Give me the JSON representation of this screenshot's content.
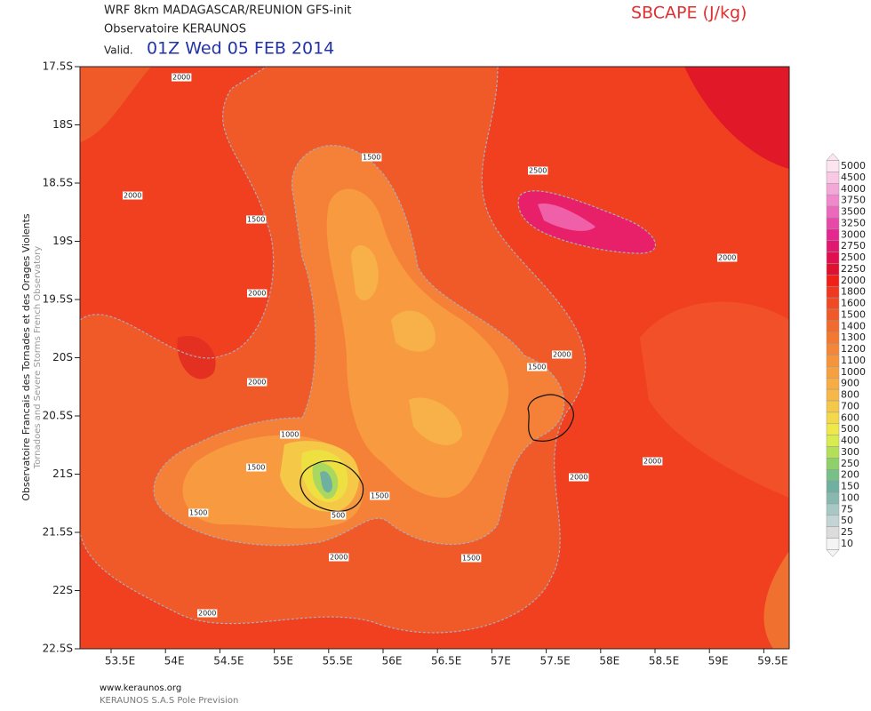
{
  "header": {
    "title": "WRF 8km MADAGASCAR/REUNION   GFS-init",
    "source": "Observatoire KERAUNOS",
    "valid_label": "Valid.",
    "valid_time": "01Z Wed 05 FEB 2014",
    "variable": "SBCAPE (J/kg)"
  },
  "side": {
    "french": "Observatoire Francais des Tornades et des Orages Violents",
    "english": "Tornadoes and Severe Storms French Observatory"
  },
  "lat_labels": [
    "17.5S",
    "18S",
    "18.5S",
    "19S",
    "19.5S",
    "20S",
    "20.5S",
    "21S",
    "21.5S",
    "22S",
    "22.5S"
  ],
  "lon_labels": [
    "53.5E",
    "54E",
    "54.5E",
    "55E",
    "55.5E",
    "56E",
    "56.5E",
    "57E",
    "57.5E",
    "58E",
    "58.5E",
    "59E",
    "59.5E"
  ],
  "contour_labels": [
    "2000",
    "1500",
    "2500",
    "2000",
    "1500",
    "2000",
    "2000",
    "2000",
    "1500",
    "2000",
    "1000",
    "2000",
    "1500",
    "2000",
    "1500",
    "1500",
    "500",
    "2000",
    "1500",
    "2000"
  ],
  "colorbar": [
    {
      "label": "5000",
      "color": "#fce4f0"
    },
    {
      "label": "4500",
      "color": "#f8c8e4"
    },
    {
      "label": "4000",
      "color": "#f4a8d8"
    },
    {
      "label": "3750",
      "color": "#f088cc"
    },
    {
      "label": "3500",
      "color": "#ec68bc"
    },
    {
      "label": "3250",
      "color": "#e848a8"
    },
    {
      "label": "3000",
      "color": "#e42890"
    },
    {
      "label": "2750",
      "color": "#e01870"
    },
    {
      "label": "2500",
      "color": "#e01050"
    },
    {
      "label": "2250",
      "color": "#e01030"
    },
    {
      "label": "2000",
      "color": "#f02018"
    },
    {
      "label": "1800",
      "color": "#f03820"
    },
    {
      "label": "1600",
      "color": "#f04a24"
    },
    {
      "label": "1500",
      "color": "#f05a28"
    },
    {
      "label": "1400",
      "color": "#f26a2c"
    },
    {
      "label": "1300",
      "color": "#f37830"
    },
    {
      "label": "1200",
      "color": "#f58638"
    },
    {
      "label": "1100",
      "color": "#f6943c"
    },
    {
      "label": "1000",
      "color": "#f7a040"
    },
    {
      "label": "900",
      "color": "#f8ac44"
    },
    {
      "label": "800",
      "color": "#f8b848"
    },
    {
      "label": "700",
      "color": "#f6c84a"
    },
    {
      "label": "600",
      "color": "#f2d84a"
    },
    {
      "label": "500",
      "color": "#eee848"
    },
    {
      "label": "400",
      "color": "#d8ec50"
    },
    {
      "label": "300",
      "color": "#b4e058"
    },
    {
      "label": "250",
      "color": "#90d068"
    },
    {
      "label": "200",
      "color": "#78c088"
    },
    {
      "label": "150",
      "color": "#70b0a0"
    },
    {
      "label": "100",
      "color": "#88b8b0"
    },
    {
      "label": "75",
      "color": "#a8c8c4"
    },
    {
      "label": "50",
      "color": "#c4d4d4"
    },
    {
      "label": "25",
      "color": "#dcdcdc"
    },
    {
      "label": "10",
      "color": "#f4f4f4"
    }
  ],
  "footer": {
    "url": "www.keraunos.org",
    "company": "KERAUNOS S.A.S Pole Prevision"
  }
}
